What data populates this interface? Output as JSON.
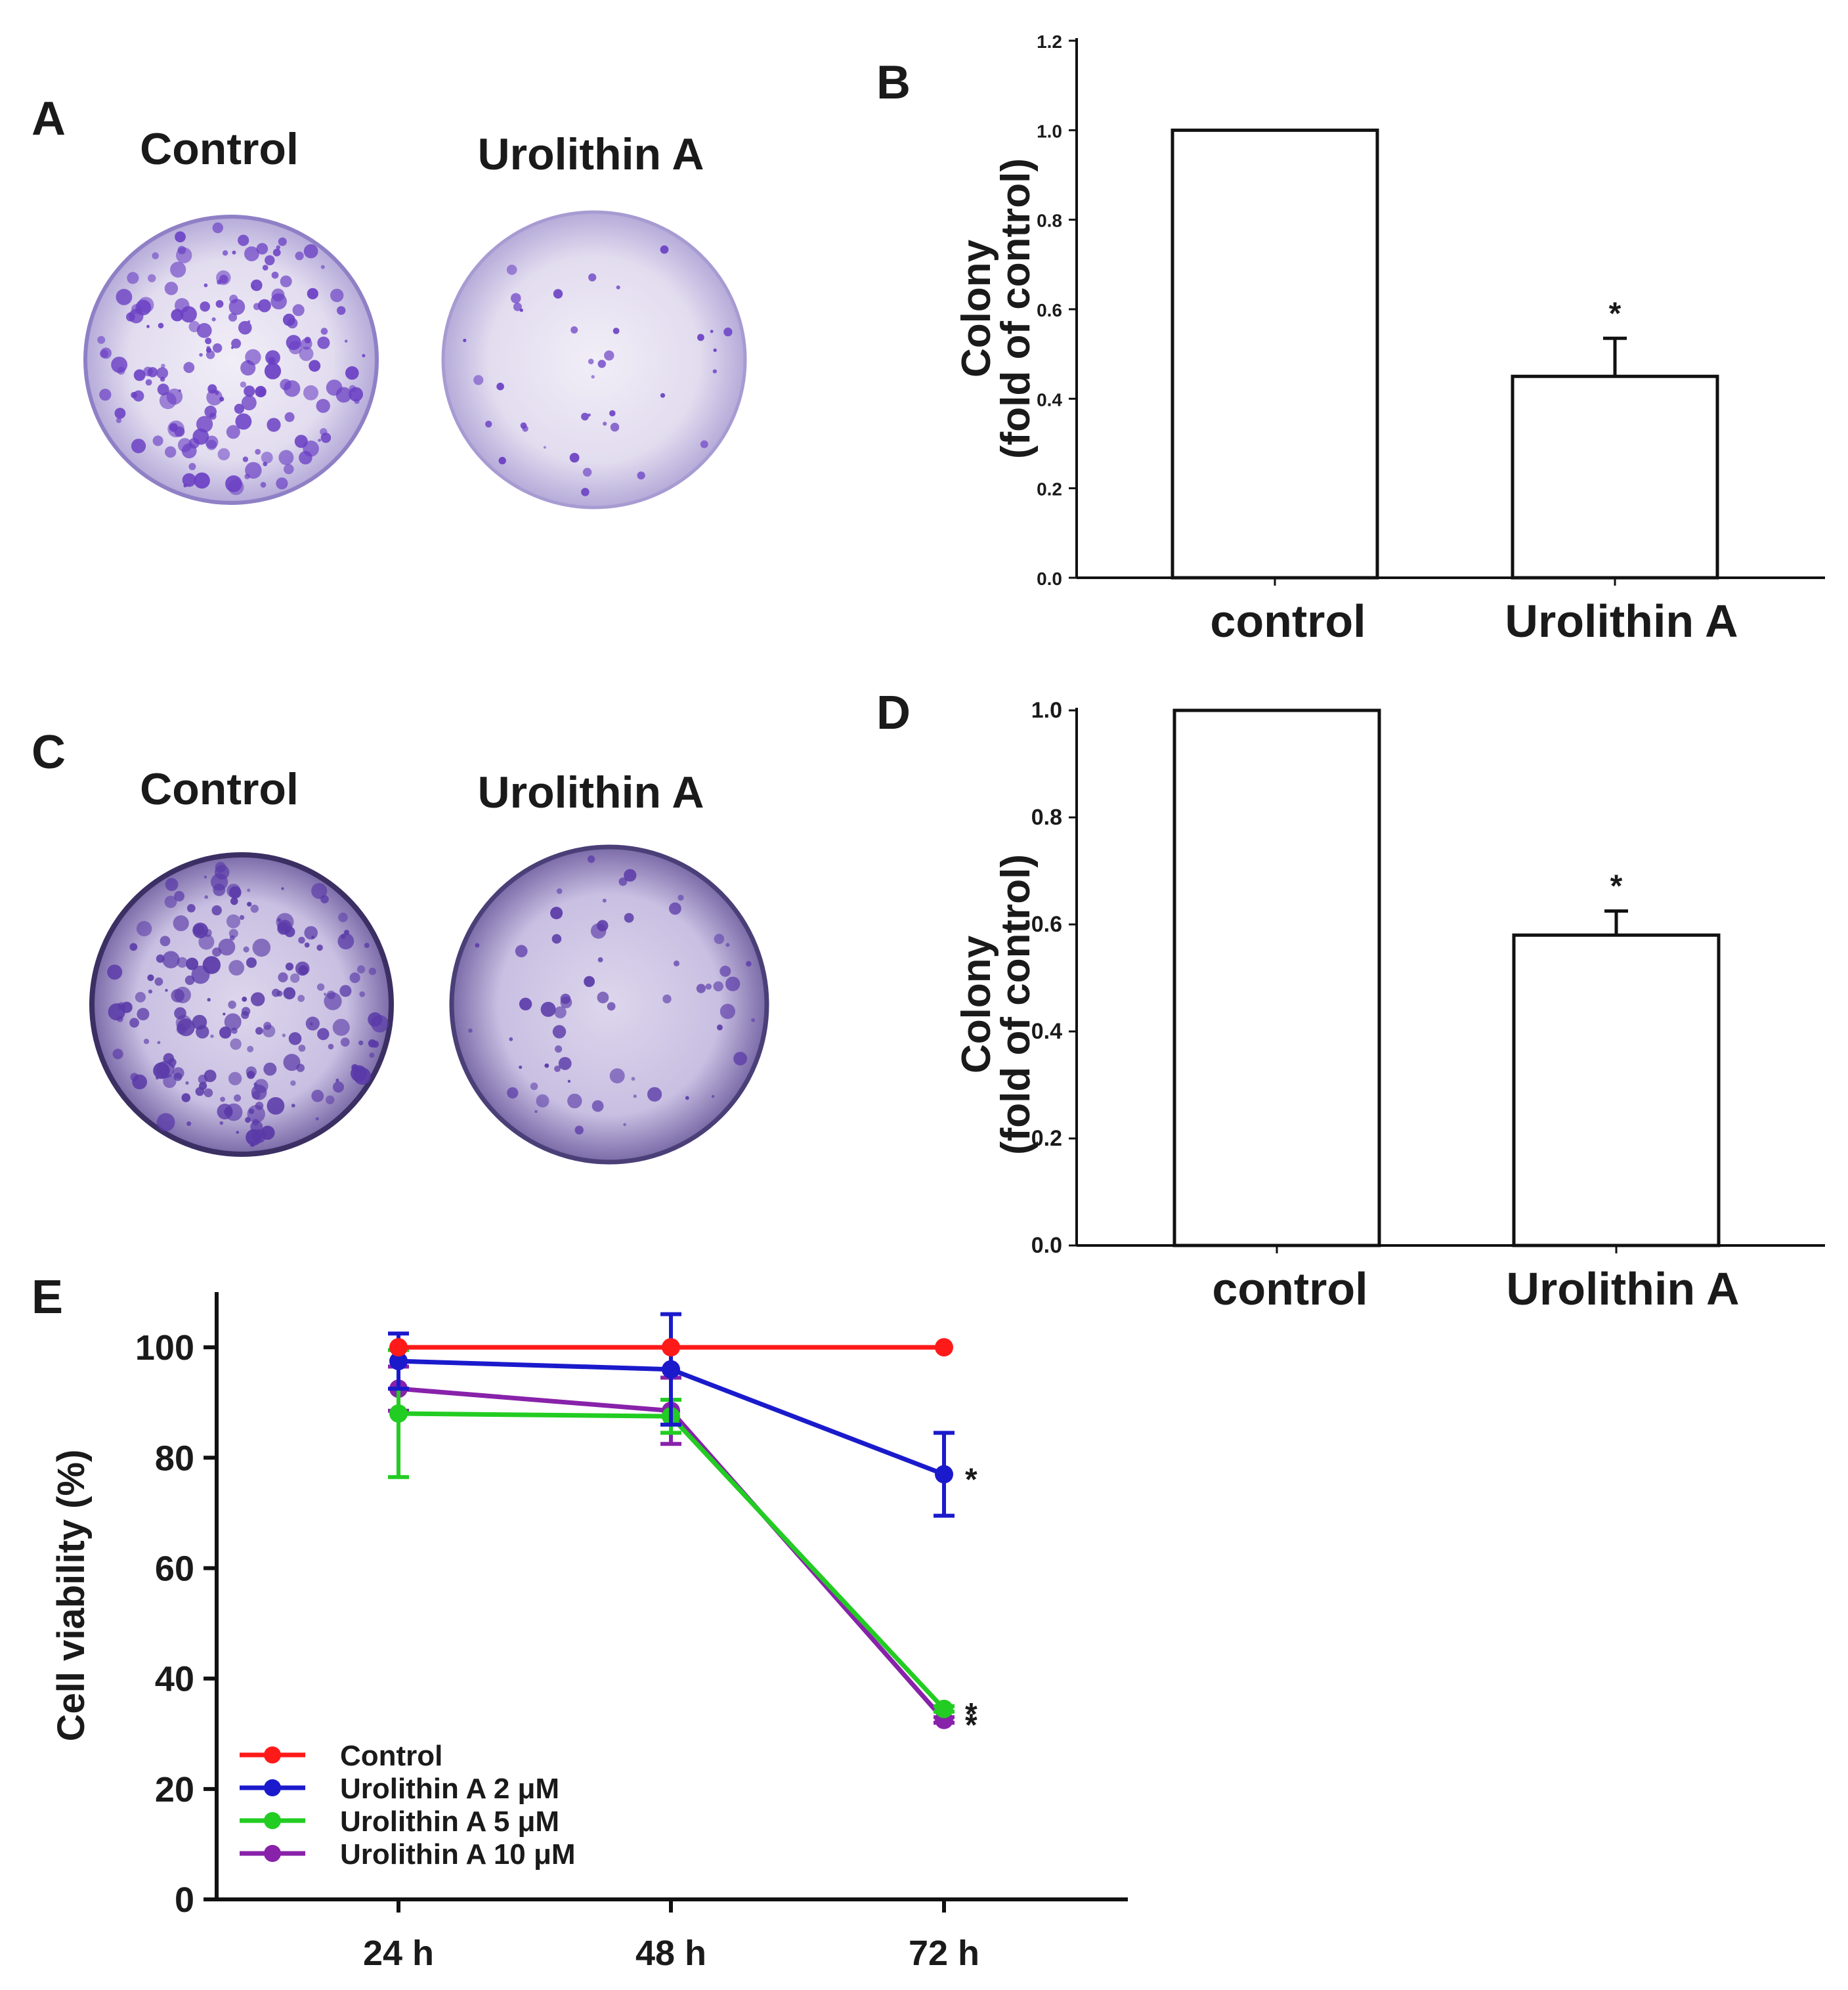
{
  "panels": {
    "A": {
      "letter": "A",
      "titles": [
        "Control",
        "Urolithin A"
      ]
    },
    "C": {
      "letter": "C",
      "titles": [
        "Control",
        "Urolithin A"
      ]
    }
  },
  "colors": {
    "dish_rim": "#b7aedd",
    "dish_fill": "#e6e0f1",
    "colony": "#6a3fc4",
    "series_control": "#ff1a1a",
    "series_2uM": "#1a1acc",
    "series_5uM": "#22cc22",
    "series_10uM": "#8822aa"
  },
  "chart_data": [
    {
      "id": "B",
      "letter": "B",
      "type": "bar",
      "categories": [
        "control",
        "Urolithin A"
      ],
      "values": [
        1.0,
        0.45
      ],
      "errors": [
        0,
        0.085
      ],
      "significance": [
        "",
        "*"
      ],
      "ylim": [
        0,
        1.2
      ],
      "yticks": [
        "0.0",
        "0.2",
        "0.4",
        "0.6",
        "0.8",
        "1.0",
        "1.2"
      ],
      "ylabel_line1": "Colony",
      "ylabel_line2": "(fold of control)",
      "xlabel": ""
    },
    {
      "id": "D",
      "letter": "D",
      "type": "bar",
      "categories": [
        "control",
        "Urolithin A"
      ],
      "values": [
        1.0,
        0.58
      ],
      "errors": [
        0,
        0.045
      ],
      "significance": [
        "",
        "*"
      ],
      "ylim": [
        0,
        1.0
      ],
      "yticks": [
        "0.0",
        "0.2",
        "0.4",
        "0.6",
        "0.8",
        "1.0"
      ],
      "ylabel_line1": "Colony",
      "ylabel_line2": "(fold of control)",
      "xlabel": ""
    },
    {
      "id": "E",
      "letter": "E",
      "type": "line",
      "x": [
        "24 h",
        "48 h",
        "72 h"
      ],
      "ylim": [
        0,
        110
      ],
      "yticks": [
        "0",
        "20",
        "40",
        "60",
        "80",
        "100"
      ],
      "ylabel": "Cell viability (%)",
      "series": [
        {
          "name": "Control",
          "values": [
            100,
            100,
            100
          ],
          "errors": [
            0,
            0,
            0
          ],
          "significance": [
            "",
            "",
            ""
          ]
        },
        {
          "name": "Urolithin A 2 μM",
          "values": [
            97.5,
            96,
            77
          ],
          "errors": [
            5,
            10,
            7.5
          ],
          "significance": [
            "",
            "",
            "*"
          ]
        },
        {
          "name": "Urolithin A 5 μM",
          "values": [
            88,
            87.5,
            34.5
          ],
          "errors": [
            11.5,
            3,
            0.5
          ],
          "significance": [
            "",
            "",
            "*"
          ]
        },
        {
          "name": "Urolithin A 10 μM",
          "values": [
            92.5,
            88.5,
            32.5
          ],
          "errors": [
            4,
            6,
            0.5
          ],
          "significance": [
            "",
            "",
            "*"
          ]
        }
      ]
    }
  ]
}
